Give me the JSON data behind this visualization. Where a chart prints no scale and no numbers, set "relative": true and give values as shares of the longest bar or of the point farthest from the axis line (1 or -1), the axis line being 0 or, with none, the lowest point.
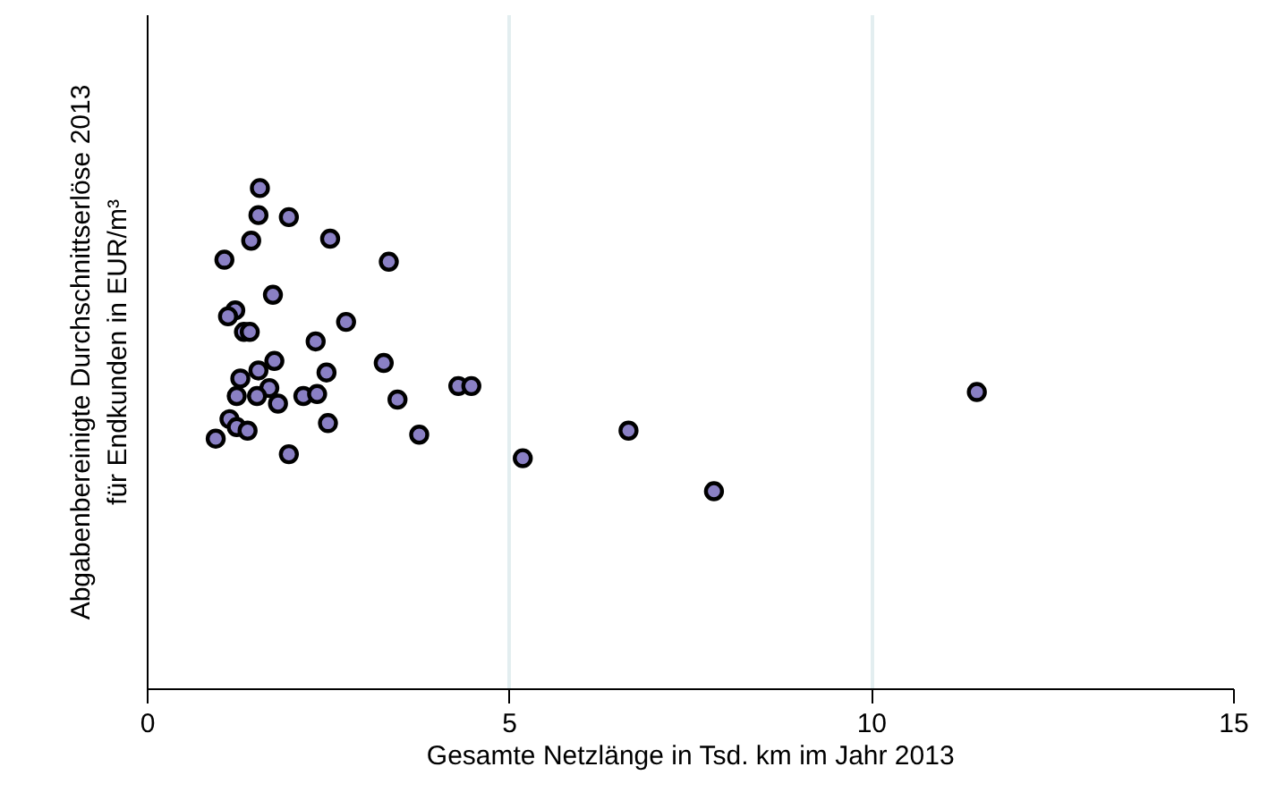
{
  "chart_data": {
    "type": "scatter",
    "relative": true,
    "xlabel": "Gesamte Netzlänge in Tsd. km im Jahr 2013",
    "ylabel": "Abgabenbereinigte Durchschnittserlöse 2013\nfür Endkunden in EUR/m³",
    "xlim": [
      0,
      15
    ],
    "xticks": [
      0,
      5,
      10,
      15
    ],
    "grid": "x",
    "marker": "circle",
    "series": [
      {
        "color": "#8a80c4",
        "x": [
          1.55,
          1.53,
          1.95,
          1.43,
          1.06,
          2.52,
          3.33,
          1.73,
          1.21,
          1.11,
          1.33,
          1.41,
          2.32,
          2.74,
          1.75,
          2.47,
          1.53,
          1.28,
          3.26,
          1.23,
          1.68,
          1.51,
          1.8,
          2.15,
          2.34,
          4.29,
          4.47,
          3.45,
          0.94,
          1.13,
          1.23,
          1.38,
          2.49,
          3.75,
          1.95,
          5.18,
          6.64,
          7.82,
          11.45
        ],
        "values": [
          1,
          0.946,
          0.942,
          0.895,
          0.857,
          0.899,
          0.853,
          0.787,
          0.756,
          0.744,
          0.713,
          0.713,
          0.694,
          0.733,
          0.655,
          0.632,
          0.636,
          0.62,
          0.651,
          0.585,
          0.601,
          0.585,
          0.57,
          0.585,
          0.589,
          0.605,
          0.605,
          0.578,
          0.5,
          0.539,
          0.523,
          0.516,
          0.531,
          0.508,
          0.469,
          0.461,
          0.516,
          0.395,
          0.593
        ]
      }
    ]
  }
}
